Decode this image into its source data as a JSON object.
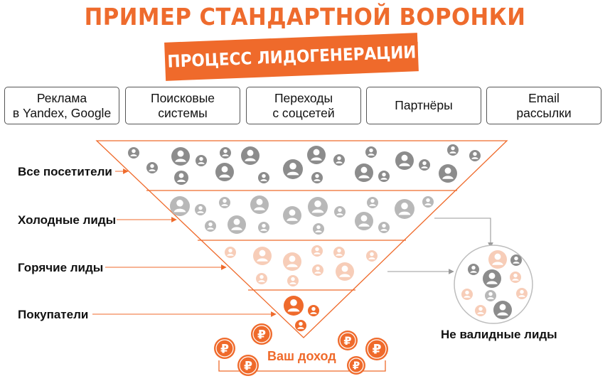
{
  "title": "ПРИМЕР СТАНДАРТНОЙ ВОРОНКИ ЛИДОГЕНЕРАЦИИ",
  "banner": "ПРОЦЕСС ЛИДОГЕНЕРАЦИИ",
  "sources": [
    "Реклама\nв Yandex, Google",
    "Поисковые\nсистемы",
    "Переходы\nс соцсетей",
    "Партнёры",
    "Email\nрассылки"
  ],
  "levels": [
    "Все посетители",
    "Холодные лиды",
    "Горячие лиды",
    "Покупатели"
  ],
  "invalid_label": "Не валидные лиды",
  "income_label": "Ваш доход",
  "coin_symbol": "₽",
  "icons": {
    "person": "user-icon",
    "coin": "ruble-coin-icon"
  },
  "colors": {
    "accent": "#ef6a2b",
    "gray_user": "#8c8c8c",
    "light_gray_user": "#b8b8b8",
    "pale_orange_user": "#f7cdb8",
    "border": "#555555"
  }
}
